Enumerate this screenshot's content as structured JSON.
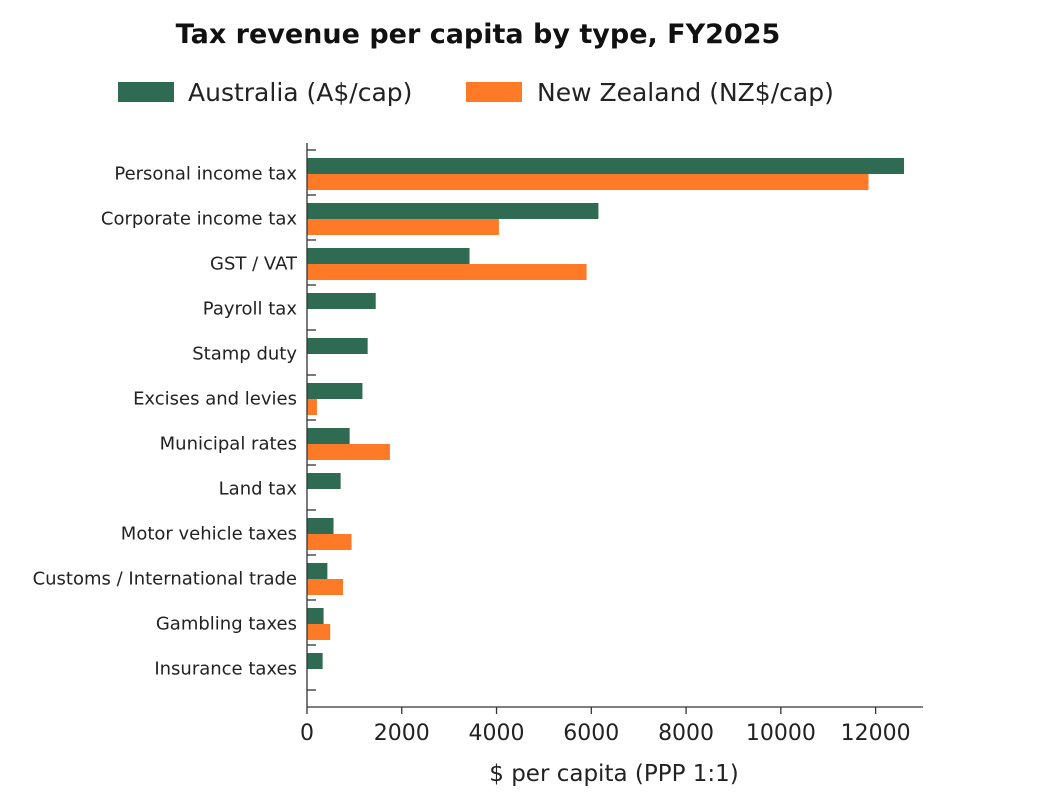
{
  "chart_data": {
    "type": "bar",
    "orientation": "horizontal",
    "title": "Tax revenue per capita by type, FY2025",
    "xlabel": "$ per capita (PPP 1:1)",
    "ylabel": "",
    "xlim": [
      0,
      13000
    ],
    "xticks": [
      0,
      2000,
      4000,
      6000,
      8000,
      10000,
      12000
    ],
    "grid": false,
    "legend_position": "top",
    "categories": [
      "Personal income tax",
      "Corporate income tax",
      "GST / VAT",
      "Payroll tax",
      "Stamp duty",
      "Excises and levies",
      "Municipal rates",
      "Land tax",
      "Motor vehicle taxes",
      "Customs / International trade",
      "Gambling taxes",
      "Insurance taxes"
    ],
    "series": [
      {
        "name": "Australia (A$/cap)",
        "color": "#2e6b52",
        "values": [
          12600,
          6150,
          3430,
          1450,
          1280,
          1170,
          900,
          710,
          560,
          430,
          350,
          330
        ]
      },
      {
        "name": "New Zealand (NZ$/cap)",
        "color": "#ff7a26",
        "values": [
          11850,
          4050,
          5900,
          0,
          0,
          210,
          1750,
          0,
          940,
          760,
          490,
          0
        ]
      }
    ]
  }
}
